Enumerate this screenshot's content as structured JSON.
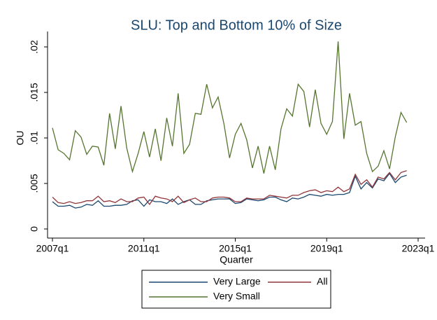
{
  "chart_data": {
    "type": "line",
    "title": "SLU: Top and Bottom 10% of Size",
    "x_label": "Quarter",
    "y_label": "OU",
    "x": [
      "2007q1",
      "2007q2",
      "2007q3",
      "2007q4",
      "2008q1",
      "2008q2",
      "2008q3",
      "2008q4",
      "2009q1",
      "2009q2",
      "2009q3",
      "2009q4",
      "2010q1",
      "2010q2",
      "2010q3",
      "2010q4",
      "2011q1",
      "2011q2",
      "2011q3",
      "2011q4",
      "2012q1",
      "2012q2",
      "2012q3",
      "2012q4",
      "2013q1",
      "2013q2",
      "2013q3",
      "2013q4",
      "2014q1",
      "2014q2",
      "2014q3",
      "2014q4",
      "2015q1",
      "2015q2",
      "2015q3",
      "2015q4",
      "2016q1",
      "2016q2",
      "2016q3",
      "2016q4",
      "2017q1",
      "2017q2",
      "2017q3",
      "2017q4",
      "2018q1",
      "2018q2",
      "2018q3",
      "2018q4",
      "2019q1",
      "2019q2",
      "2019q3",
      "2019q4",
      "2020q1",
      "2020q2",
      "2020q3",
      "2020q4",
      "2021q1",
      "2021q2",
      "2021q3",
      "2021q4",
      "2022q1",
      "2022q2",
      "2022q3"
    ],
    "series": [
      {
        "name": "Very Large",
        "color": "#1a476f",
        "values": [
          0.003,
          0.0025,
          0.0025,
          0.0026,
          0.0023,
          0.0024,
          0.0027,
          0.0026,
          0.0031,
          0.0025,
          0.0025,
          0.0026,
          0.0026,
          0.0027,
          0.0031,
          0.0032,
          0.0025,
          0.0032,
          0.003,
          0.003,
          0.0028,
          0.0033,
          0.0027,
          0.003,
          0.0032,
          0.0027,
          0.0027,
          0.0031,
          0.0032,
          0.0033,
          0.0033,
          0.0033,
          0.0028,
          0.0029,
          0.0033,
          0.0032,
          0.0031,
          0.0032,
          0.0035,
          0.0035,
          0.0032,
          0.003,
          0.0034,
          0.0033,
          0.0035,
          0.0038,
          0.0037,
          0.0036,
          0.0038,
          0.0037,
          0.0038,
          0.0038,
          0.004,
          0.0058,
          0.0044,
          0.0051,
          0.0045,
          0.0055,
          0.0053,
          0.0061,
          0.0051,
          0.0057,
          0.0059
        ]
      },
      {
        "name": "All",
        "color": "#90353b",
        "values": [
          0.0035,
          0.0029,
          0.0028,
          0.003,
          0.0028,
          0.0029,
          0.0031,
          0.0031,
          0.0036,
          0.003,
          0.0031,
          0.0029,
          0.0033,
          0.003,
          0.003,
          0.0034,
          0.0035,
          0.0027,
          0.0036,
          0.0034,
          0.0033,
          0.003,
          0.0036,
          0.0029,
          0.0032,
          0.0034,
          0.003,
          0.003,
          0.0034,
          0.0035,
          0.0035,
          0.0034,
          0.003,
          0.003,
          0.0034,
          0.0033,
          0.0033,
          0.0033,
          0.0037,
          0.0036,
          0.0035,
          0.0034,
          0.0037,
          0.0037,
          0.004,
          0.0042,
          0.0043,
          0.004,
          0.0042,
          0.0041,
          0.0046,
          0.0041,
          0.0044,
          0.006,
          0.0049,
          0.0054,
          0.0046,
          0.0057,
          0.0055,
          0.0062,
          0.0054,
          0.0062,
          0.0064
        ]
      },
      {
        "name": "Very Small",
        "color": "#55752f",
        "values": [
          0.0111,
          0.0087,
          0.0083,
          0.0076,
          0.0108,
          0.0101,
          0.0082,
          0.0091,
          0.009,
          0.007,
          0.0127,
          0.0088,
          0.0135,
          0.0089,
          0.0063,
          0.0083,
          0.0107,
          0.0079,
          0.011,
          0.0075,
          0.0122,
          0.0091,
          0.0149,
          0.0083,
          0.0093,
          0.0127,
          0.0126,
          0.0159,
          0.0133,
          0.0145,
          0.0116,
          0.0078,
          0.0104,
          0.0116,
          0.0098,
          0.0067,
          0.0091,
          0.0061,
          0.0091,
          0.0065,
          0.011,
          0.0132,
          0.0124,
          0.0159,
          0.0151,
          0.0112,
          0.0153,
          0.0116,
          0.0104,
          0.0118,
          0.0206,
          0.0099,
          0.0149,
          0.0114,
          0.0118,
          0.0083,
          0.0063,
          0.0069,
          0.0086,
          0.0066,
          0.0101,
          0.0128,
          0.0117
        ]
      }
    ],
    "xlim": [
      "2007q1",
      "2023q1"
    ],
    "xticks": [
      "2007q1",
      "2011q1",
      "2015q1",
      "2019q1",
      "2023q1"
    ],
    "ylim": [
      -0.001,
      0.021
    ],
    "yticks": [
      0,
      {
        "value": 0.005,
        "label": ".005"
      },
      {
        "value": 0.01,
        "label": ".01"
      },
      {
        "value": 0.015,
        "label": ".015"
      },
      {
        "value": 0.02,
        "label": ".02"
      }
    ],
    "grid": false
  }
}
